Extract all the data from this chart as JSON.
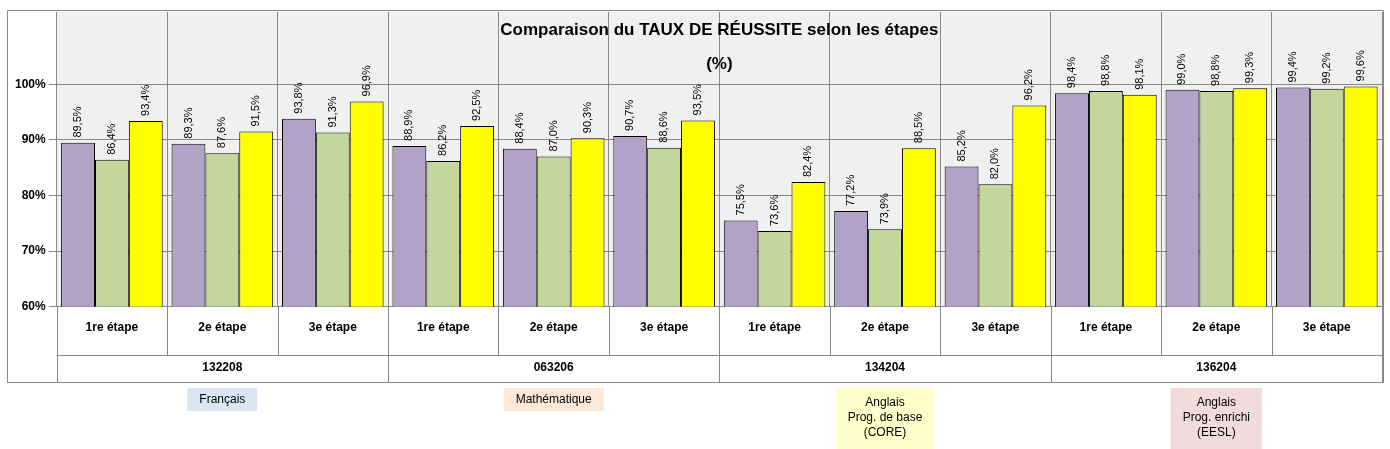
{
  "chart_data": {
    "type": "bar",
    "title": "Comparaison du TAUX DE RÉUSSITE selon les étapes\n(%)",
    "categories": [
      "1re étape",
      "2e étape",
      "3e étape",
      "1re étape",
      "2e étape",
      "3e étape",
      "1re étape",
      "2e étape",
      "3e étape",
      "1re étape",
      "2e étape",
      "3e étape"
    ],
    "series": [
      {
        "color": "#b3a2c7",
        "values": [
          89.5,
          89.3,
          93.8,
          88.9,
          88.4,
          90.7,
          75.5,
          77.2,
          85.2,
          98.4,
          99.0,
          99.4
        ],
        "value_labels": [
          "89,5%",
          "89,3%",
          "93,8%",
          "88,9%",
          "88,4%",
          "90,7%",
          "75,5%",
          "77,2%",
          "85,2%",
          "98,4%",
          "99,0%",
          "99,4%"
        ]
      },
      {
        "color": "#c3d69b",
        "values": [
          86.4,
          87.6,
          91.3,
          86.2,
          87.0,
          88.6,
          73.6,
          73.9,
          82.0,
          98.8,
          98.8,
          99.2
        ],
        "value_labels": [
          "86,4%",
          "87,6%",
          "91,3%",
          "86,2%",
          "87,0%",
          "88,6%",
          "73,6%",
          "73,9%",
          "82,0%",
          "98,8%",
          "98,8%",
          "99,2%"
        ]
      },
      {
        "color": "#ffff00",
        "values": [
          93.4,
          91.5,
          96.9,
          92.5,
          90.3,
          93.5,
          82.4,
          88.5,
          96.2,
          98.1,
          99.3,
          99.6
        ],
        "value_labels": [
          "93,4%",
          "91,5%",
          "96,9%",
          "92,5%",
          "90,3%",
          "93,5%",
          "82,4%",
          "88,5%",
          "96,2%",
          "98,1%",
          "99,3%",
          "99,6%"
        ]
      }
    ],
    "ylim": [
      60,
      113
    ],
    "yticks": [
      {
        "value": 60,
        "label": "60%"
      },
      {
        "value": 70,
        "label": "70%"
      },
      {
        "value": 80,
        "label": "80%"
      },
      {
        "value": 90,
        "label": "90%"
      },
      {
        "value": 100,
        "label": "100%"
      }
    ],
    "grid": "y",
    "legend": false,
    "annotations": [
      "132208",
      "063206",
      "134204",
      "136204",
      "Français",
      "Mathématique",
      "Anglais\nProg. de base\n(CORE)",
      "Anglais\nProg. enrichi\n(EESL)"
    ]
  }
}
